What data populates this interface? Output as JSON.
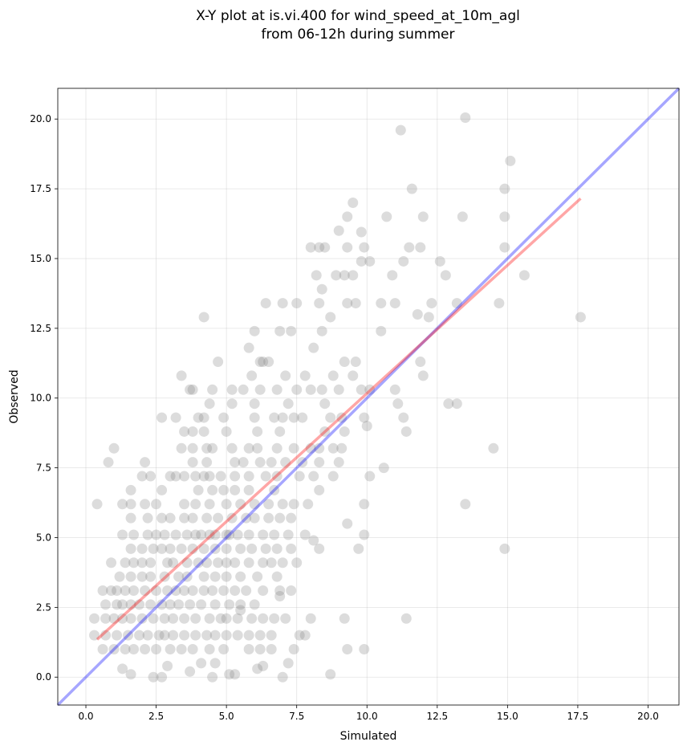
{
  "chart_data": {
    "type": "scatter",
    "title": "X-Y plot at is.vi.400 for wind_speed_at_10m_agl",
    "subtitle": "from 06-12h during summer",
    "xlabel": "Simulated",
    "ylabel": "Observed",
    "xlim": [
      -1.0,
      21.1
    ],
    "ylim": [
      -1.0,
      21.1
    ],
    "xticks": [
      "0.0",
      "2.5",
      "5.0",
      "7.5",
      "10.0",
      "12.5",
      "15.0",
      "17.5",
      "20.0"
    ],
    "yticks": [
      "0.0",
      "2.5",
      "5.0",
      "7.5",
      "10.0",
      "12.5",
      "15.0",
      "17.5",
      "20.0"
    ],
    "grid": true,
    "colors": {
      "points": "#808080",
      "identity_line": "#0000ff",
      "fit_line": "#ff0000"
    },
    "identity_line": {
      "x": [
        -1.0,
        21.1
      ],
      "y": [
        -1.0,
        21.1
      ]
    },
    "fit_line": {
      "x": [
        0.4,
        17.6
      ],
      "y": [
        1.35,
        17.15
      ]
    },
    "points": [
      [
        11.2,
        19.6
      ],
      [
        13.5,
        20.05
      ],
      [
        15.1,
        18.5
      ],
      [
        14.9,
        17.5
      ],
      [
        11.6,
        17.5
      ],
      [
        9.5,
        17.0
      ],
      [
        9.3,
        16.5
      ],
      [
        10.7,
        16.5
      ],
      [
        12.0,
        16.5
      ],
      [
        13.4,
        16.5
      ],
      [
        14.9,
        16.5
      ],
      [
        9.0,
        16.0
      ],
      [
        9.8,
        15.95
      ],
      [
        8.0,
        15.4
      ],
      [
        8.3,
        15.4
      ],
      [
        8.5,
        15.4
      ],
      [
        9.3,
        15.4
      ],
      [
        9.9,
        15.4
      ],
      [
        11.5,
        15.4
      ],
      [
        11.9,
        15.4
      ],
      [
        14.9,
        15.4
      ],
      [
        9.8,
        14.9
      ],
      [
        10.1,
        14.9
      ],
      [
        11.3,
        14.9
      ],
      [
        12.6,
        14.9
      ],
      [
        8.2,
        14.4
      ],
      [
        8.9,
        14.4
      ],
      [
        9.2,
        14.4
      ],
      [
        9.5,
        14.4
      ],
      [
        10.9,
        14.4
      ],
      [
        12.8,
        14.4
      ],
      [
        15.6,
        14.4
      ],
      [
        7.5,
        13.4
      ],
      [
        8.4,
        13.9
      ],
      [
        8.3,
        13.4
      ],
      [
        9.3,
        13.4
      ],
      [
        9.6,
        13.4
      ],
      [
        10.5,
        13.4
      ],
      [
        11.0,
        13.4
      ],
      [
        12.3,
        13.4
      ],
      [
        13.2,
        13.4
      ],
      [
        14.7,
        13.4
      ],
      [
        6.4,
        13.4
      ],
      [
        7.0,
        13.4
      ],
      [
        11.8,
        13.0
      ],
      [
        12.2,
        12.9
      ],
      [
        4.2,
        12.9
      ],
      [
        8.7,
        12.9
      ],
      [
        17.6,
        12.9
      ],
      [
        6.0,
        12.4
      ],
      [
        6.9,
        12.4
      ],
      [
        7.3,
        12.4
      ],
      [
        8.4,
        12.4
      ],
      [
        10.5,
        12.4
      ],
      [
        5.8,
        11.8
      ],
      [
        8.1,
        11.8
      ],
      [
        4.7,
        11.3
      ],
      [
        6.2,
        11.3
      ],
      [
        6.3,
        11.3
      ],
      [
        6.5,
        11.3
      ],
      [
        9.2,
        11.3
      ],
      [
        9.6,
        11.3
      ],
      [
        11.9,
        11.3
      ],
      [
        3.4,
        10.8
      ],
      [
        5.9,
        10.8
      ],
      [
        7.1,
        10.8
      ],
      [
        7.8,
        10.8
      ],
      [
        8.8,
        10.8
      ],
      [
        9.5,
        10.8
      ],
      [
        12.0,
        10.8
      ],
      [
        3.7,
        10.3
      ],
      [
        3.8,
        10.3
      ],
      [
        4.5,
        10.3
      ],
      [
        5.2,
        10.3
      ],
      [
        5.6,
        10.3
      ],
      [
        6.2,
        10.3
      ],
      [
        6.8,
        10.3
      ],
      [
        7.5,
        10.3
      ],
      [
        8.0,
        10.3
      ],
      [
        8.4,
        10.3
      ],
      [
        9.0,
        10.3
      ],
      [
        9.8,
        10.3
      ],
      [
        10.1,
        10.3
      ],
      [
        11.0,
        10.3
      ],
      [
        4.4,
        9.8
      ],
      [
        5.2,
        9.8
      ],
      [
        6.0,
        9.8
      ],
      [
        7.2,
        9.8
      ],
      [
        8.5,
        9.8
      ],
      [
        11.1,
        9.8
      ],
      [
        12.9,
        9.8
      ],
      [
        13.2,
        9.8
      ],
      [
        2.7,
        9.3
      ],
      [
        3.2,
        9.3
      ],
      [
        4.0,
        9.3
      ],
      [
        4.2,
        9.3
      ],
      [
        4.9,
        9.3
      ],
      [
        6.0,
        9.3
      ],
      [
        6.7,
        9.3
      ],
      [
        7.0,
        9.3
      ],
      [
        7.4,
        9.3
      ],
      [
        7.7,
        9.3
      ],
      [
        8.7,
        9.3
      ],
      [
        9.1,
        9.3
      ],
      [
        9.9,
        9.3
      ],
      [
        11.3,
        9.3
      ],
      [
        3.5,
        8.8
      ],
      [
        3.8,
        8.8
      ],
      [
        4.2,
        8.8
      ],
      [
        5.0,
        8.8
      ],
      [
        6.1,
        8.8
      ],
      [
        6.9,
        8.8
      ],
      [
        8.5,
        8.8
      ],
      [
        9.2,
        8.8
      ],
      [
        11.4,
        8.8
      ],
      [
        10.0,
        9.0
      ],
      [
        1.0,
        8.2
      ],
      [
        3.4,
        8.2
      ],
      [
        3.8,
        8.2
      ],
      [
        4.3,
        8.2
      ],
      [
        4.5,
        8.2
      ],
      [
        5.2,
        8.2
      ],
      [
        5.8,
        8.2
      ],
      [
        6.1,
        8.2
      ],
      [
        6.8,
        8.2
      ],
      [
        7.4,
        8.2
      ],
      [
        8.0,
        8.2
      ],
      [
        8.3,
        8.2
      ],
      [
        8.8,
        8.2
      ],
      [
        9.1,
        8.2
      ],
      [
        14.5,
        8.2
      ],
      [
        0.8,
        7.7
      ],
      [
        2.1,
        7.7
      ],
      [
        3.8,
        7.7
      ],
      [
        4.3,
        7.7
      ],
      [
        5.3,
        7.7
      ],
      [
        5.6,
        7.7
      ],
      [
        6.2,
        7.7
      ],
      [
        6.6,
        7.7
      ],
      [
        7.1,
        7.7
      ],
      [
        7.7,
        7.7
      ],
      [
        8.3,
        7.7
      ],
      [
        9.0,
        7.7
      ],
      [
        10.6,
        7.5
      ],
      [
        2.0,
        7.2
      ],
      [
        2.3,
        7.2
      ],
      [
        3.0,
        7.2
      ],
      [
        3.2,
        7.2
      ],
      [
        3.5,
        7.2
      ],
      [
        3.9,
        7.2
      ],
      [
        4.2,
        7.2
      ],
      [
        4.4,
        7.2
      ],
      [
        4.8,
        7.2
      ],
      [
        5.3,
        7.2
      ],
      [
        5.8,
        7.2
      ],
      [
        6.4,
        7.2
      ],
      [
        6.8,
        7.2
      ],
      [
        7.6,
        7.2
      ],
      [
        8.1,
        7.2
      ],
      [
        8.8,
        7.2
      ],
      [
        10.1,
        7.2
      ],
      [
        1.6,
        6.7
      ],
      [
        2.7,
        6.7
      ],
      [
        4.0,
        6.7
      ],
      [
        4.5,
        6.7
      ],
      [
        4.9,
        6.7
      ],
      [
        5.3,
        6.7
      ],
      [
        5.8,
        6.7
      ],
      [
        6.7,
        6.7
      ],
      [
        8.3,
        6.7
      ],
      [
        0.4,
        6.2
      ],
      [
        1.3,
        6.2
      ],
      [
        1.6,
        6.2
      ],
      [
        2.1,
        6.2
      ],
      [
        2.5,
        6.2
      ],
      [
        3.5,
        6.2
      ],
      [
        3.9,
        6.2
      ],
      [
        4.4,
        6.2
      ],
      [
        5.0,
        6.2
      ],
      [
        5.5,
        6.2
      ],
      [
        6.0,
        6.2
      ],
      [
        6.5,
        6.2
      ],
      [
        7.0,
        6.2
      ],
      [
        7.4,
        6.2
      ],
      [
        7.9,
        6.2
      ],
      [
        9.9,
        6.2
      ],
      [
        13.5,
        6.2
      ],
      [
        1.6,
        5.7
      ],
      [
        2.2,
        5.7
      ],
      [
        2.7,
        5.7
      ],
      [
        3.0,
        5.7
      ],
      [
        3.5,
        5.7
      ],
      [
        3.8,
        5.7
      ],
      [
        4.3,
        5.7
      ],
      [
        4.7,
        5.7
      ],
      [
        5.2,
        5.7
      ],
      [
        5.7,
        5.7
      ],
      [
        6.0,
        5.7
      ],
      [
        6.5,
        5.7
      ],
      [
        6.9,
        5.7
      ],
      [
        7.3,
        5.7
      ],
      [
        1.3,
        5.1
      ],
      [
        1.7,
        5.1
      ],
      [
        2.2,
        5.1
      ],
      [
        2.5,
        5.1
      ],
      [
        2.8,
        5.1
      ],
      [
        3.2,
        5.1
      ],
      [
        3.6,
        5.1
      ],
      [
        3.9,
        5.1
      ],
      [
        4.1,
        5.1
      ],
      [
        4.4,
        5.1
      ],
      [
        4.6,
        5.1
      ],
      [
        5.0,
        5.1
      ],
      [
        5.1,
        5.1
      ],
      [
        5.4,
        5.1
      ],
      [
        5.8,
        5.1
      ],
      [
        6.3,
        5.1
      ],
      [
        6.7,
        5.1
      ],
      [
        7.2,
        5.1
      ],
      [
        7.8,
        5.1
      ],
      [
        9.3,
        5.5
      ],
      [
        9.9,
        5.1
      ],
      [
        1.6,
        4.6
      ],
      [
        2.0,
        4.6
      ],
      [
        2.4,
        4.6
      ],
      [
        2.7,
        4.6
      ],
      [
        3.0,
        4.6
      ],
      [
        3.4,
        4.6
      ],
      [
        3.8,
        4.6
      ],
      [
        4.2,
        4.6
      ],
      [
        4.6,
        4.6
      ],
      [
        5.0,
        4.6
      ],
      [
        5.5,
        4.6
      ],
      [
        5.9,
        4.6
      ],
      [
        6.4,
        4.6
      ],
      [
        6.8,
        4.6
      ],
      [
        7.3,
        4.6
      ],
      [
        8.1,
        4.9
      ],
      [
        8.3,
        4.6
      ],
      [
        9.7,
        4.6
      ],
      [
        14.9,
        4.6
      ],
      [
        0.9,
        4.1
      ],
      [
        1.4,
        4.1
      ],
      [
        1.7,
        4.1
      ],
      [
        2.0,
        4.1
      ],
      [
        2.3,
        4.1
      ],
      [
        2.9,
        4.1
      ],
      [
        3.1,
        4.1
      ],
      [
        3.6,
        4.1
      ],
      [
        4.0,
        4.1
      ],
      [
        4.3,
        4.1
      ],
      [
        4.7,
        4.1
      ],
      [
        5.0,
        4.1
      ],
      [
        5.3,
        4.1
      ],
      [
        5.8,
        4.1
      ],
      [
        6.3,
        4.1
      ],
      [
        6.6,
        4.1
      ],
      [
        7.0,
        4.1
      ],
      [
        7.5,
        4.1
      ],
      [
        1.2,
        3.6
      ],
      [
        1.6,
        3.6
      ],
      [
        2.0,
        3.6
      ],
      [
        2.3,
        3.6
      ],
      [
        2.8,
        3.6
      ],
      [
        3.3,
        3.6
      ],
      [
        3.6,
        3.6
      ],
      [
        4.2,
        3.6
      ],
      [
        4.6,
        3.6
      ],
      [
        5.0,
        3.6
      ],
      [
        5.5,
        3.6
      ],
      [
        6.1,
        3.6
      ],
      [
        6.8,
        3.6
      ],
      [
        0.6,
        3.1
      ],
      [
        0.9,
        3.1
      ],
      [
        1.1,
        3.1
      ],
      [
        1.4,
        3.1
      ],
      [
        1.7,
        3.1
      ],
      [
        2.1,
        3.1
      ],
      [
        2.5,
        3.1
      ],
      [
        2.9,
        3.1
      ],
      [
        3.2,
        3.1
      ],
      [
        3.5,
        3.1
      ],
      [
        3.8,
        3.1
      ],
      [
        4.2,
        3.1
      ],
      [
        4.5,
        3.1
      ],
      [
        4.9,
        3.1
      ],
      [
        5.3,
        3.1
      ],
      [
        5.7,
        3.1
      ],
      [
        6.3,
        3.1
      ],
      [
        6.9,
        3.1
      ],
      [
        7.3,
        3.1
      ],
      [
        0.7,
        2.6
      ],
      [
        1.1,
        2.6
      ],
      [
        1.3,
        2.6
      ],
      [
        1.6,
        2.6
      ],
      [
        1.9,
        2.6
      ],
      [
        2.3,
        2.6
      ],
      [
        2.7,
        2.6
      ],
      [
        3.0,
        2.6
      ],
      [
        3.3,
        2.6
      ],
      [
        3.7,
        2.6
      ],
      [
        4.1,
        2.6
      ],
      [
        4.6,
        2.6
      ],
      [
        5.1,
        2.6
      ],
      [
        5.5,
        2.6
      ],
      [
        6.0,
        2.6
      ],
      [
        6.9,
        2.9
      ],
      [
        0.3,
        2.1
      ],
      [
        0.7,
        2.1
      ],
      [
        1.0,
        2.1
      ],
      [
        1.3,
        2.1
      ],
      [
        1.6,
        2.1
      ],
      [
        2.0,
        2.1
      ],
      [
        2.4,
        2.1
      ],
      [
        2.8,
        2.1
      ],
      [
        3.1,
        2.1
      ],
      [
        3.5,
        2.1
      ],
      [
        3.9,
        2.1
      ],
      [
        4.4,
        2.1
      ],
      [
        4.8,
        2.1
      ],
      [
        5.0,
        2.1
      ],
      [
        5.4,
        2.1
      ],
      [
        5.9,
        2.1
      ],
      [
        6.3,
        2.1
      ],
      [
        6.7,
        2.1
      ],
      [
        7.1,
        2.1
      ],
      [
        8.0,
        2.1
      ],
      [
        9.2,
        2.1
      ],
      [
        11.4,
        2.1
      ],
      [
        5.5,
        2.4
      ],
      [
        0.3,
        1.5
      ],
      [
        0.7,
        1.5
      ],
      [
        1.1,
        1.5
      ],
      [
        1.5,
        1.5
      ],
      [
        1.9,
        1.5
      ],
      [
        2.2,
        1.5
      ],
      [
        2.6,
        1.5
      ],
      [
        2.8,
        1.5
      ],
      [
        3.1,
        1.5
      ],
      [
        3.5,
        1.5
      ],
      [
        3.9,
        1.5
      ],
      [
        4.3,
        1.5
      ],
      [
        4.6,
        1.5
      ],
      [
        5.0,
        1.5
      ],
      [
        5.4,
        1.5
      ],
      [
        5.8,
        1.5
      ],
      [
        6.2,
        1.5
      ],
      [
        6.6,
        1.5
      ],
      [
        7.6,
        1.5
      ],
      [
        7.8,
        1.5
      ],
      [
        0.6,
        1.0
      ],
      [
        1.0,
        1.0
      ],
      [
        1.4,
        1.0
      ],
      [
        1.7,
        1.0
      ],
      [
        2.1,
        1.0
      ],
      [
        2.5,
        1.0
      ],
      [
        3.0,
        1.0
      ],
      [
        3.4,
        1.0
      ],
      [
        3.8,
        1.0
      ],
      [
        4.4,
        1.0
      ],
      [
        4.9,
        1.0
      ],
      [
        5.8,
        1.0
      ],
      [
        6.2,
        1.0
      ],
      [
        6.6,
        1.0
      ],
      [
        7.4,
        1.0
      ],
      [
        9.3,
        1.0
      ],
      [
        9.9,
        1.0
      ],
      [
        1.3,
        0.3
      ],
      [
        2.9,
        0.4
      ],
      [
        4.1,
        0.5
      ],
      [
        4.6,
        0.5
      ],
      [
        5.3,
        0.1
      ],
      [
        6.1,
        0.3
      ],
      [
        6.3,
        0.4
      ],
      [
        7.2,
        0.5
      ],
      [
        1.6,
        0.1
      ],
      [
        2.4,
        0.0
      ],
      [
        2.7,
        0.0
      ],
      [
        3.7,
        0.2
      ],
      [
        4.5,
        0.0
      ],
      [
        5.1,
        0.1
      ],
      [
        7.0,
        0.0
      ],
      [
        8.7,
        0.1
      ]
    ]
  }
}
